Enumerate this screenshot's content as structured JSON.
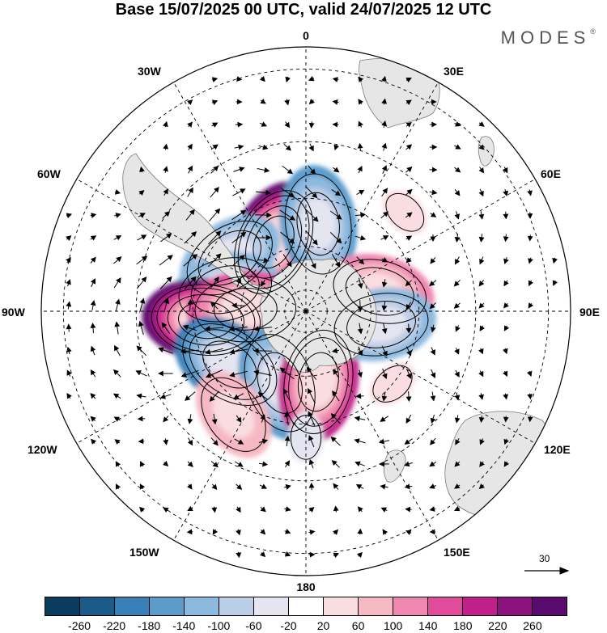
{
  "title": "Base 15/07/2025 00 UTC, valid 24/07/2025 12 UTC",
  "brand": {
    "name": "MODES",
    "mark": "®"
  },
  "longitude_labels": {
    "top": "0",
    "bottom": "180",
    "left": "90W",
    "right": "90E",
    "upper_left_1": "30W",
    "upper_left_2": "60W",
    "upper_right_1": "30E",
    "upper_right_2": "60E",
    "lower_left_1": "120W",
    "lower_left_2": "150W",
    "lower_right_1": "120E",
    "lower_right_2": "150E"
  },
  "vector_scale": {
    "label": "30"
  },
  "colorbar": {
    "colors": [
      "#0b3c5d",
      "#1a5b8a",
      "#3a7fb6",
      "#5b9ccb",
      "#8db9de",
      "#bccde6",
      "#e4e5f1",
      "#ffffff",
      "#f9dde0",
      "#f6b9c4",
      "#ef88b0",
      "#e04b9b",
      "#c0208a",
      "#8a137d",
      "#5a0b6e"
    ],
    "labels": [
      "-260",
      "-220",
      "-180",
      "-140",
      "-100",
      "-60",
      "-20",
      "20",
      "60",
      "100",
      "140",
      "180",
      "220",
      "260"
    ]
  },
  "anomaly_centers": [
    {
      "lon": -25,
      "lat": -55,
      "value": 260
    },
    {
      "lon": 8,
      "lat": -50,
      "value": -140
    },
    {
      "lon": -55,
      "lat": -48,
      "value": -100
    },
    {
      "lon": -75,
      "lat": -52,
      "value": -120
    },
    {
      "lon": -95,
      "lat": -45,
      "value": 250
    },
    {
      "lon": -88,
      "lat": -62,
      "value": 160
    },
    {
      "lon": -125,
      "lat": -48,
      "value": -180
    },
    {
      "lon": -160,
      "lat": -55,
      "value": -160
    },
    {
      "lon": 170,
      "lat": -57,
      "value": 190
    },
    {
      "lon": -145,
      "lat": -35,
      "value": 70
    },
    {
      "lon": 75,
      "lat": -55,
      "value": 100
    },
    {
      "lon": 100,
      "lat": -55,
      "value": -110
    },
    {
      "lon": 130,
      "lat": -40,
      "value": 40
    },
    {
      "lon": 45,
      "lat": -30,
      "value": 40
    },
    {
      "lon": 180,
      "lat": -35,
      "value": -40
    }
  ]
}
